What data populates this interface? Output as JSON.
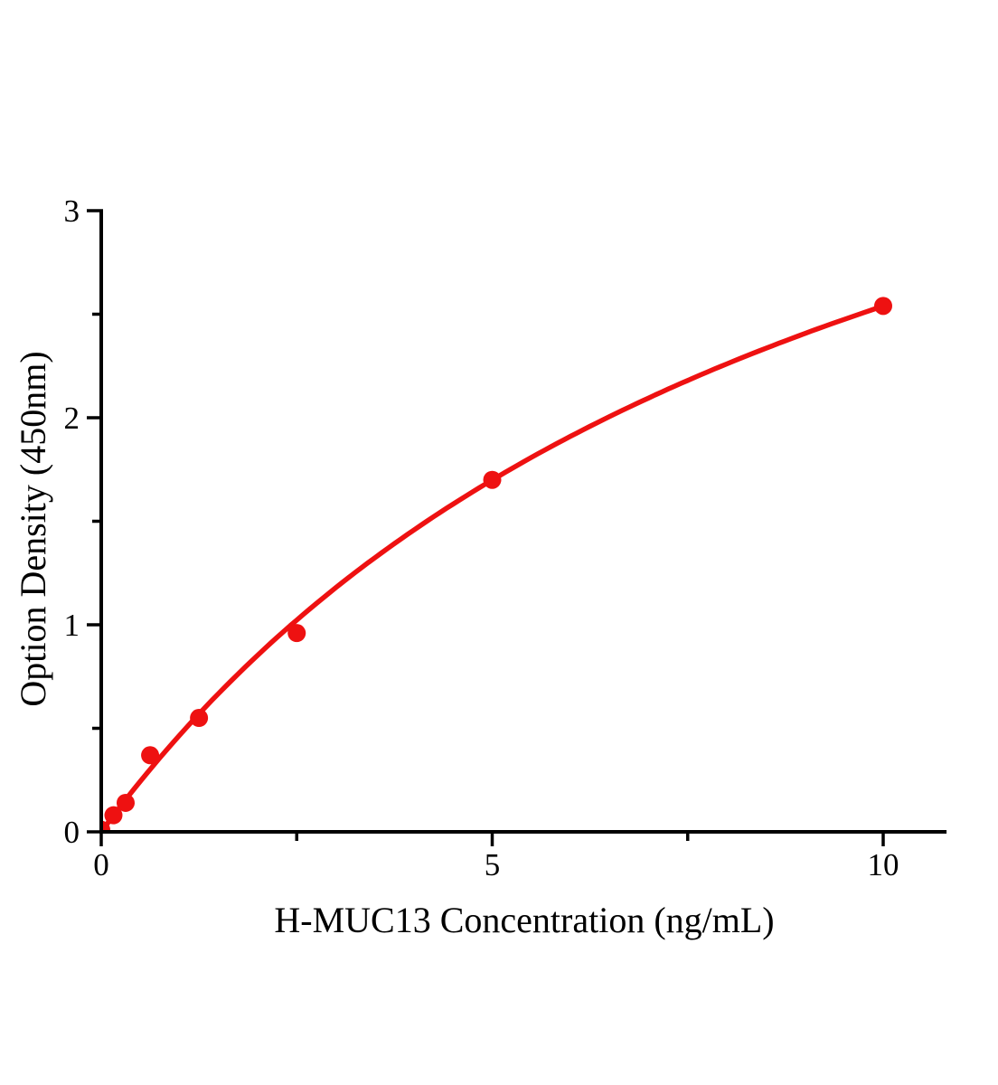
{
  "chart_data": {
    "type": "scatter",
    "title": "",
    "xlabel": "H-MUC13 Concentration (ng/mL)",
    "ylabel": "Option Density (450nm)",
    "x": [
      0,
      0.156,
      0.312,
      0.625,
      1.25,
      2.5,
      5,
      10
    ],
    "y": [
      0.01,
      0.08,
      0.14,
      0.37,
      0.55,
      0.96,
      1.7,
      2.54
    ],
    "xlim": [
      0,
      10.81
    ],
    "ylim": [
      0,
      3
    ],
    "x_major_ticks": [
      0,
      5,
      10
    ],
    "x_major_tick_labels": [
      "0",
      "5",
      "10"
    ],
    "x_minor_ticks": [
      2.5,
      7.5
    ],
    "y_major_ticks": [
      0,
      1,
      2,
      3
    ],
    "y_major_tick_labels": [
      "0",
      "1",
      "2",
      "3"
    ],
    "y_minor_ticks": [
      0.5,
      1.5,
      2.5
    ],
    "grid": false,
    "legend": "none",
    "marker_color": "#ee1111",
    "line_color": "#ee1111",
    "axis_color": "#000000",
    "fit_curve": {
      "model": "y = a*x / (b + x)",
      "a": 5.02,
      "b": 9.77,
      "x_range": [
        0,
        10
      ]
    }
  }
}
